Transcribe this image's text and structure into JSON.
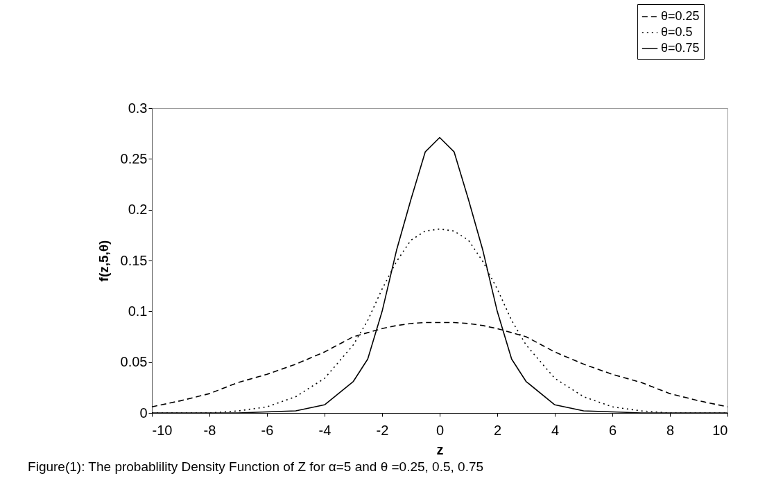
{
  "chart_data": {
    "type": "line",
    "xlabel": "z",
    "ylabel": "f(z,5,θ)",
    "annotations": [
      "Figure(1): The probablility Density Function of Z for α=5 and θ =0.25, 0.5, 0.75"
    ],
    "x": [
      -10,
      -9,
      -8,
      -7,
      -6,
      -5,
      -4,
      -3,
      -2.5,
      -2,
      -1.5,
      -1,
      -0.5,
      0,
      0.5,
      1,
      1.5,
      2,
      2.5,
      3,
      4,
      5,
      6,
      7,
      8,
      9,
      10
    ],
    "series": [
      {
        "name": "θ=0.25",
        "color": "#000000",
        "line_style": "dashed",
        "values": [
          0.006,
          0.012,
          0.019,
          0.03,
          0.038,
          0.048,
          0.06,
          0.075,
          0.079,
          0.083,
          0.086,
          0.088,
          0.089,
          0.089,
          0.089,
          0.088,
          0.086,
          0.083,
          0.079,
          0.075,
          0.06,
          0.048,
          0.038,
          0.03,
          0.019,
          0.012,
          0.006
        ]
      },
      {
        "name": "θ=0.5",
        "color": "#000000",
        "line_style": "dotted",
        "values": [
          0,
          0,
          0,
          0.002,
          0.006,
          0.016,
          0.034,
          0.067,
          0.091,
          0.122,
          0.149,
          0.17,
          0.179,
          0.181,
          0.179,
          0.17,
          0.149,
          0.122,
          0.091,
          0.067,
          0.034,
          0.016,
          0.006,
          0.002,
          0,
          0,
          0
        ]
      },
      {
        "name": "θ=0.75",
        "color": "#000000",
        "line_style": "solid",
        "values": [
          0,
          0,
          0,
          0,
          0.001,
          0.002,
          0.008,
          0.031,
          0.053,
          0.1,
          0.16,
          0.21,
          0.257,
          0.271,
          0.257,
          0.21,
          0.16,
          0.1,
          0.053,
          0.031,
          0.008,
          0.002,
          0.001,
          0,
          0,
          0,
          0
        ]
      }
    ],
    "xlim": [
      -10,
      10
    ],
    "xticks": [
      -10,
      -8,
      -6,
      -4,
      -2,
      0,
      2,
      4,
      6,
      8,
      10
    ],
    "ylim": [
      0,
      0.3
    ],
    "yticks": [
      0,
      0.05,
      0.1,
      0.15,
      0.2,
      0.25,
      0.3
    ],
    "grid": false,
    "legend": "top right"
  }
}
